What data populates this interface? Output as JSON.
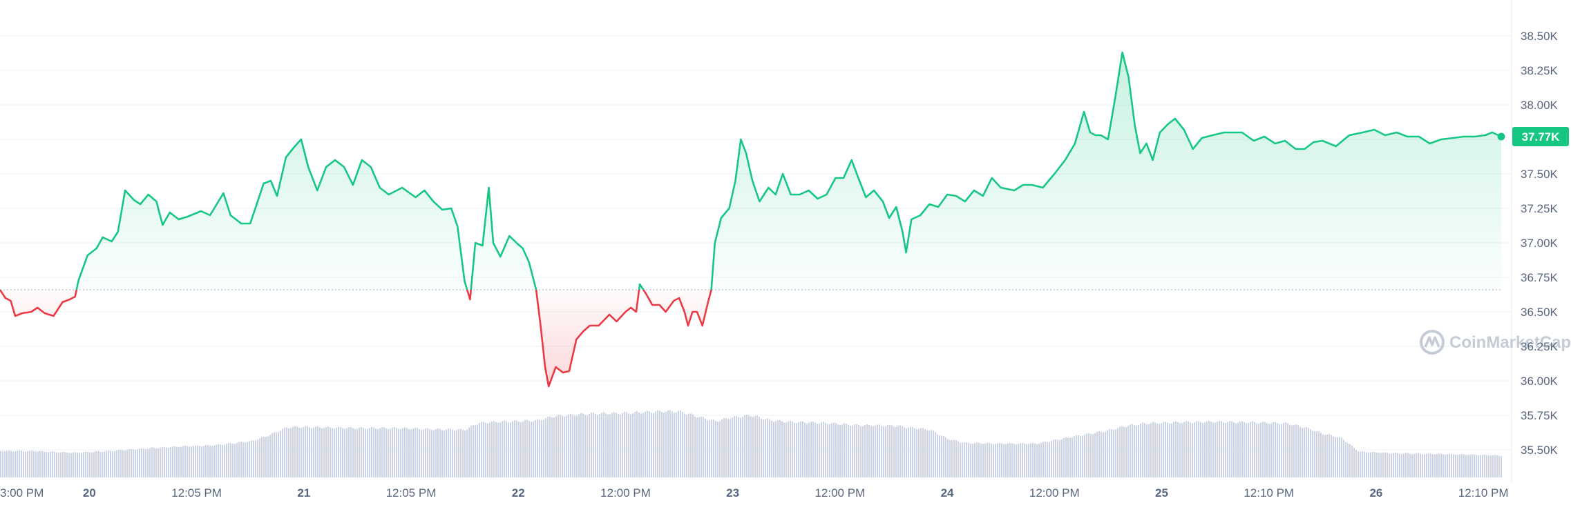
{
  "colors": {
    "up": "#16c784",
    "down": "#ea3943",
    "grid": "#eff2f5",
    "volume": "#cdd3e6",
    "label_bg": "#16c784",
    "watermark": "#c5ccd6"
  },
  "watermark": {
    "text": "CoinMarketCap",
    "icon": "coinmarketcap-logo-icon"
  },
  "current_price_label": "37.77K",
  "chart_data": {
    "type": "line",
    "title": "",
    "xlabel": "",
    "ylabel": "",
    "ylim": [
      35.3,
      38.72
    ],
    "y_unit": "K",
    "baseline": 36.66,
    "y_ticks": [
      "38.50K",
      "38.25K",
      "38.00K",
      "37.75K",
      "37.50K",
      "37.25K",
      "37.00K",
      "36.75K",
      "36.50K",
      "36.25K",
      "36.00K",
      "35.75K",
      "35.50K"
    ],
    "y_tick_values": [
      38.5,
      38.25,
      38.0,
      37.75,
      37.5,
      37.25,
      37.0,
      36.75,
      36.5,
      36.25,
      36.0,
      35.75,
      35.5
    ],
    "x_range": [
      0,
      168
    ],
    "x_ticks": [
      {
        "label": "3:00 PM",
        "x": 2.5,
        "day": false
      },
      {
        "label": "20",
        "x": 10,
        "day": true
      },
      {
        "label": "12:05 PM",
        "x": 22,
        "day": false
      },
      {
        "label": "21",
        "x": 34,
        "day": true
      },
      {
        "label": "12:05 PM",
        "x": 46,
        "day": false
      },
      {
        "label": "22",
        "x": 58,
        "day": true
      },
      {
        "label": "12:00 PM",
        "x": 70,
        "day": false
      },
      {
        "label": "23",
        "x": 82,
        "day": true
      },
      {
        "label": "12:00 PM",
        "x": 94,
        "day": false
      },
      {
        "label": "24",
        "x": 106,
        "day": true
      },
      {
        "label": "12:00 PM",
        "x": 118,
        "day": false
      },
      {
        "label": "25",
        "x": 130,
        "day": true
      },
      {
        "label": "12:10 PM",
        "x": 142,
        "day": false
      },
      {
        "label": "26",
        "x": 154,
        "day": true
      },
      {
        "label": "12:10 PM",
        "x": 166,
        "day": false
      }
    ],
    "series": [
      {
        "values": [
          [
            0,
            36.66
          ],
          [
            0.6,
            36.6
          ],
          [
            1.2,
            36.58
          ],
          [
            1.7,
            36.47
          ],
          [
            2.5,
            36.49
          ],
          [
            3.5,
            36.5
          ],
          [
            4.2,
            36.53
          ],
          [
            5,
            36.49
          ],
          [
            6,
            36.47
          ],
          [
            7,
            36.57
          ],
          [
            7.8,
            36.59
          ],
          [
            8.4,
            36.61
          ],
          [
            8.8,
            36.73
          ],
          [
            9.8,
            36.91
          ],
          [
            10.8,
            36.96
          ],
          [
            11.5,
            37.04
          ],
          [
            12.5,
            37.01
          ],
          [
            13.2,
            37.08
          ],
          [
            14,
            37.38
          ],
          [
            15,
            37.31
          ],
          [
            15.7,
            37.28
          ],
          [
            16.6,
            37.35
          ],
          [
            17.5,
            37.3
          ],
          [
            18.2,
            37.13
          ],
          [
            19,
            37.22
          ],
          [
            20,
            37.17
          ],
          [
            21,
            37.19
          ],
          [
            22.5,
            37.23
          ],
          [
            23.5,
            37.2
          ],
          [
            25,
            37.36
          ],
          [
            25.8,
            37.2
          ],
          [
            27,
            37.14
          ],
          [
            28,
            37.14
          ],
          [
            29.5,
            37.43
          ],
          [
            30.3,
            37.45
          ],
          [
            31,
            37.34
          ],
          [
            32,
            37.62
          ],
          [
            33,
            37.7
          ],
          [
            33.7,
            37.75
          ],
          [
            34.5,
            37.55
          ],
          [
            35.5,
            37.38
          ],
          [
            36.5,
            37.55
          ],
          [
            37.5,
            37.6
          ],
          [
            38.5,
            37.55
          ],
          [
            39.5,
            37.42
          ],
          [
            40.5,
            37.6
          ],
          [
            41.5,
            37.55
          ],
          [
            42.5,
            37.4
          ],
          [
            43.5,
            37.35
          ],
          [
            45,
            37.4
          ],
          [
            46.5,
            37.33
          ],
          [
            47.5,
            37.38
          ],
          [
            48.5,
            37.3
          ],
          [
            49.5,
            37.24
          ],
          [
            50.5,
            37.25
          ],
          [
            51.2,
            37.12
          ],
          [
            52,
            36.72
          ],
          [
            52.6,
            36.59
          ],
          [
            53.2,
            37.0
          ],
          [
            54,
            36.98
          ],
          [
            54.7,
            37.4
          ],
          [
            55.2,
            37.0
          ],
          [
            56,
            36.9
          ],
          [
            57,
            37.05
          ],
          [
            57.8,
            37.0
          ],
          [
            58.5,
            36.96
          ],
          [
            59.2,
            36.86
          ],
          [
            60,
            36.66
          ],
          [
            60.5,
            36.4
          ],
          [
            61,
            36.1
          ],
          [
            61.4,
            35.96
          ],
          [
            62.2,
            36.1
          ],
          [
            63,
            36.06
          ],
          [
            63.7,
            36.07
          ],
          [
            64.5,
            36.3
          ],
          [
            65.3,
            36.36
          ],
          [
            66,
            36.4
          ],
          [
            67,
            36.4
          ],
          [
            68.2,
            36.48
          ],
          [
            69,
            36.43
          ],
          [
            70,
            36.5
          ],
          [
            70.6,
            36.53
          ],
          [
            71.2,
            36.5
          ],
          [
            71.6,
            36.7
          ],
          [
            72.3,
            36.63
          ],
          [
            73,
            36.55
          ],
          [
            73.8,
            36.55
          ],
          [
            74.5,
            36.5
          ],
          [
            75.4,
            36.58
          ],
          [
            76,
            36.6
          ],
          [
            76.6,
            36.5
          ],
          [
            77,
            36.4
          ],
          [
            77.5,
            36.5
          ],
          [
            78,
            36.5
          ],
          [
            78.6,
            36.4
          ],
          [
            79.2,
            36.56
          ],
          [
            79.6,
            36.66
          ],
          [
            80,
            37.0
          ],
          [
            80.7,
            37.18
          ],
          [
            81.6,
            37.25
          ],
          [
            82.3,
            37.45
          ],
          [
            82.9,
            37.75
          ],
          [
            83.5,
            37.65
          ],
          [
            84.2,
            37.45
          ],
          [
            85,
            37.3
          ],
          [
            86,
            37.4
          ],
          [
            86.8,
            37.35
          ],
          [
            87.6,
            37.5
          ],
          [
            88.5,
            37.35
          ],
          [
            89.5,
            37.35
          ],
          [
            90.5,
            37.38
          ],
          [
            91.5,
            37.32
          ],
          [
            92.5,
            37.35
          ],
          [
            93.5,
            37.47
          ],
          [
            94.4,
            37.47
          ],
          [
            95.3,
            37.6
          ],
          [
            96,
            37.48
          ],
          [
            96.9,
            37.33
          ],
          [
            97.8,
            37.38
          ],
          [
            98.8,
            37.3
          ],
          [
            99.5,
            37.18
          ],
          [
            100.3,
            37.26
          ],
          [
            101,
            37.08
          ],
          [
            101.4,
            36.93
          ],
          [
            102,
            37.17
          ],
          [
            103,
            37.2
          ],
          [
            104,
            37.28
          ],
          [
            105,
            37.26
          ],
          [
            106,
            37.35
          ],
          [
            107,
            37.34
          ],
          [
            108,
            37.3
          ],
          [
            109,
            37.38
          ],
          [
            110,
            37.34
          ],
          [
            111,
            37.47
          ],
          [
            112,
            37.4
          ],
          [
            113.5,
            37.38
          ],
          [
            114.5,
            37.42
          ],
          [
            115.5,
            37.42
          ],
          [
            116.7,
            37.4
          ],
          [
            118,
            37.5
          ],
          [
            119.2,
            37.6
          ],
          [
            120.3,
            37.72
          ],
          [
            121.3,
            37.95
          ],
          [
            122,
            37.8
          ],
          [
            122.6,
            37.78
          ],
          [
            123.2,
            37.78
          ],
          [
            124,
            37.75
          ],
          [
            124.8,
            38.05
          ],
          [
            125.6,
            38.38
          ],
          [
            126.3,
            38.2
          ],
          [
            127,
            37.85
          ],
          [
            127.6,
            37.65
          ],
          [
            128.3,
            37.72
          ],
          [
            129,
            37.6
          ],
          [
            129.8,
            37.8
          ],
          [
            130.7,
            37.86
          ],
          [
            131.5,
            37.9
          ],
          [
            132.5,
            37.82
          ],
          [
            133.5,
            37.68
          ],
          [
            134.5,
            37.76
          ],
          [
            135.7,
            37.78
          ],
          [
            137,
            37.8
          ],
          [
            138,
            37.8
          ],
          [
            139,
            37.8
          ],
          [
            140.3,
            37.74
          ],
          [
            141.5,
            37.77
          ],
          [
            142.7,
            37.72
          ],
          [
            143.8,
            37.74
          ],
          [
            145,
            37.68
          ],
          [
            146,
            37.68
          ],
          [
            147,
            37.73
          ],
          [
            148,
            37.74
          ],
          [
            149.5,
            37.7
          ],
          [
            151,
            37.78
          ],
          [
            152.5,
            37.8
          ],
          [
            153.8,
            37.82
          ],
          [
            155,
            37.78
          ],
          [
            156.3,
            37.8
          ],
          [
            157.5,
            37.77
          ],
          [
            158.8,
            37.77
          ],
          [
            160,
            37.72
          ],
          [
            161.3,
            37.75
          ],
          [
            162.6,
            37.76
          ],
          [
            163.8,
            37.77
          ],
          [
            165,
            37.77
          ],
          [
            166.2,
            37.78
          ],
          [
            167,
            37.8
          ],
          [
            168,
            37.77
          ]
        ]
      }
    ],
    "volume": {
      "x": [
        0,
        4,
        8,
        12,
        16,
        20,
        24,
        28,
        30,
        32,
        34,
        36,
        40,
        44,
        48,
        52,
        53.5,
        56,
        60,
        62,
        66,
        70,
        74,
        76,
        78,
        80,
        82,
        84,
        86,
        88,
        92,
        96,
        100,
        104,
        106,
        108,
        112,
        116,
        120,
        124,
        126,
        128,
        132,
        136,
        140,
        142,
        144,
        146,
        148,
        150,
        152,
        156,
        160,
        164,
        168
      ],
      "values": [
        0.46,
        0.46,
        0.43,
        0.46,
        0.5,
        0.54,
        0.56,
        0.63,
        0.73,
        0.87,
        0.88,
        0.87,
        0.86,
        0.86,
        0.84,
        0.83,
        0.95,
        0.97,
        0.99,
        1.07,
        1.11,
        1.12,
        1.15,
        1.15,
        1.06,
        0.98,
        1.05,
        1.08,
        1.0,
        0.97,
        0.95,
        0.91,
        0.9,
        0.83,
        0.67,
        0.6,
        0.59,
        0.59,
        0.71,
        0.82,
        0.9,
        0.94,
        0.96,
        0.97,
        0.96,
        0.95,
        0.94,
        0.87,
        0.76,
        0.69,
        0.45,
        0.42,
        0.41,
        0.4,
        0.38
      ]
    }
  }
}
